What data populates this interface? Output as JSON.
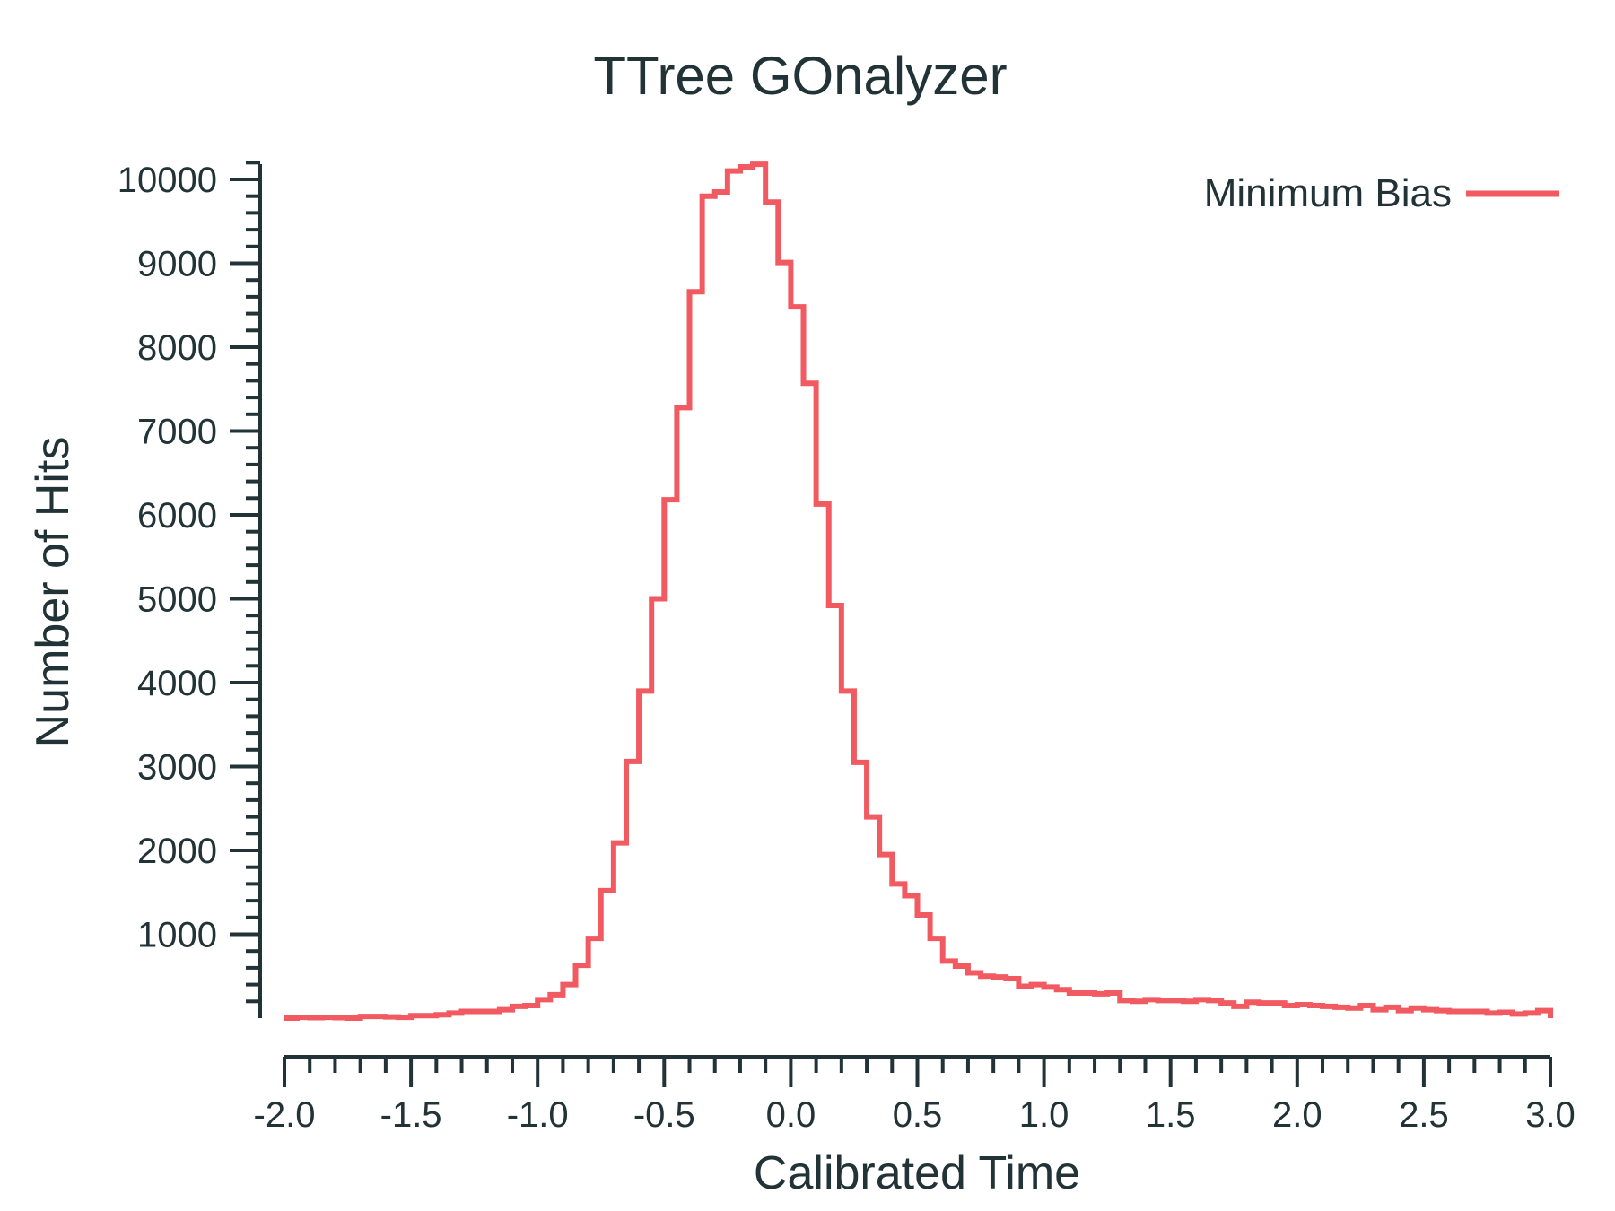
{
  "colors": {
    "series": "#f05a60",
    "axis": "#223337",
    "text": "#223337"
  },
  "chart_data": {
    "type": "line",
    "style": "step-histogram",
    "title": "TTree GOnalyzer",
    "xlabel": "Calibrated Time",
    "ylabel": "Number of Hits",
    "xlim": [
      -2.0,
      3.0
    ],
    "ylim": [
      0,
      10300
    ],
    "xticks": [
      -2.0,
      -1.5,
      -1.0,
      -0.5,
      0.0,
      0.5,
      1.0,
      1.5,
      2.0,
      2.5,
      3.0
    ],
    "xtick_labels": [
      "-2.0",
      "-1.5",
      "-1.0",
      "-0.5",
      "0.0",
      "0.5",
      "1.0",
      "1.5",
      "2.0",
      "2.5",
      "3.0"
    ],
    "yticks": [
      1000,
      2000,
      3000,
      4000,
      5000,
      6000,
      7000,
      8000,
      9000,
      10000
    ],
    "ytick_labels": [
      "1000",
      "2000",
      "3000",
      "4000",
      "5000",
      "6000",
      "7000",
      "8000",
      "9000",
      "10000"
    ],
    "grid": false,
    "legend_position": "top-right",
    "series": [
      {
        "name": "Minimum Bias",
        "color": "#f05a60",
        "bin_edges": [
          -2.0,
          -1.95,
          -1.9,
          -1.85,
          -1.8,
          -1.75,
          -1.7,
          -1.65,
          -1.6,
          -1.55,
          -1.5,
          -1.45,
          -1.4,
          -1.35,
          -1.3,
          -1.25,
          -1.2,
          -1.15,
          -1.1,
          -1.05,
          -1.0,
          -0.95,
          -0.9,
          -0.85,
          -0.8,
          -0.75,
          -0.7,
          -0.65,
          -0.6,
          -0.55,
          -0.5,
          -0.45,
          -0.4,
          -0.35,
          -0.3,
          -0.25,
          -0.2,
          -0.15,
          -0.1,
          -0.05,
          0.0,
          0.05,
          0.1,
          0.15,
          0.2,
          0.25,
          0.3,
          0.35,
          0.4,
          0.45,
          0.5,
          0.55,
          0.6,
          0.65,
          0.7,
          0.75,
          0.8,
          0.85,
          0.9,
          0.95,
          1.0,
          1.05,
          1.1,
          1.15,
          1.2,
          1.25,
          1.3,
          1.35,
          1.4,
          1.45,
          1.5,
          1.55,
          1.6,
          1.65,
          1.7,
          1.75,
          1.8,
          1.85,
          1.9,
          1.95,
          2.0,
          2.05,
          2.1,
          2.15,
          2.2,
          2.25,
          2.3,
          2.35,
          2.4,
          2.45,
          2.5,
          2.55,
          2.6,
          2.65,
          2.7,
          2.75,
          2.8,
          2.85,
          2.9,
          2.95,
          3.0
        ],
        "values": [
          0,
          10,
          5,
          10,
          5,
          0,
          20,
          20,
          15,
          10,
          30,
          30,
          40,
          60,
          80,
          80,
          80,
          100,
          140,
          150,
          220,
          280,
          400,
          630,
          950,
          1520,
          2090,
          3060,
          3900,
          5000,
          6180,
          7280,
          8660,
          9800,
          9850,
          10100,
          10150,
          10180,
          9730,
          9010,
          8480,
          7570,
          6130,
          4920,
          3900,
          3050,
          2400,
          1950,
          1600,
          1460,
          1230,
          950,
          680,
          620,
          540,
          500,
          490,
          470,
          380,
          400,
          370,
          340,
          300,
          300,
          290,
          300,
          210,
          200,
          220,
          210,
          210,
          200,
          220,
          210,
          180,
          140,
          190,
          180,
          180,
          150,
          160,
          150,
          140,
          130,
          120,
          150,
          100,
          130,
          90,
          120,
          100,
          90,
          80,
          80,
          80,
          60,
          70,
          50,
          60,
          90
        ]
      }
    ]
  }
}
